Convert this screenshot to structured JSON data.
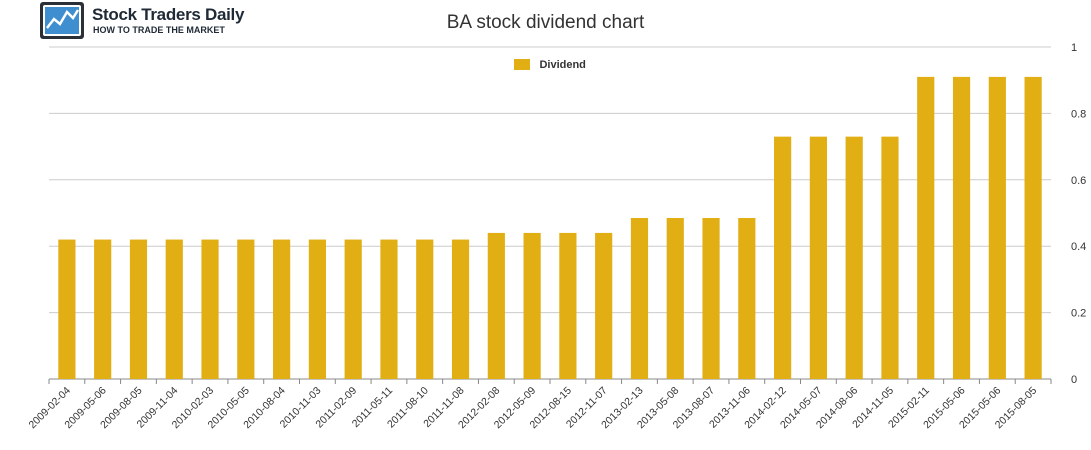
{
  "branding": {
    "logo_name": "Stock Traders Daily",
    "logo_tagline": "HOW TO TRADE THE MARKET"
  },
  "colors": {
    "bar": "#e1ae14",
    "grid": "#cccccc",
    "axis": "#888888",
    "text": "#333333"
  },
  "chart_data": {
    "type": "bar",
    "title": "BA stock dividend chart",
    "xlabel": "",
    "ylabel": "",
    "ylim": [
      0,
      1
    ],
    "yticks": [
      0,
      0.2,
      0.4,
      0.6,
      0.8,
      1
    ],
    "y_axis_side": "right",
    "grid": true,
    "legend_position": "top-center",
    "categories": [
      "2009-02-04",
      "2009-05-06",
      "2009-08-05",
      "2009-11-04",
      "2010-02-03",
      "2010-05-05",
      "2010-08-04",
      "2010-11-03",
      "2011-02-09",
      "2011-05-11",
      "2011-08-10",
      "2011-11-08",
      "2012-02-08",
      "2012-05-09",
      "2012-08-15",
      "2012-11-07",
      "2013-02-13",
      "2013-05-08",
      "2013-08-07",
      "2013-11-06",
      "2014-02-12",
      "2014-05-07",
      "2014-08-06",
      "2014-11-05",
      "2015-02-11",
      "2015-05-06",
      "2015-05-06",
      "2015-08-05"
    ],
    "series": [
      {
        "name": "Dividend",
        "values": [
          0.42,
          0.42,
          0.42,
          0.42,
          0.42,
          0.42,
          0.42,
          0.42,
          0.42,
          0.42,
          0.42,
          0.42,
          0.44,
          0.44,
          0.44,
          0.44,
          0.485,
          0.485,
          0.485,
          0.485,
          0.73,
          0.73,
          0.73,
          0.73,
          0.91,
          0.91,
          0.91,
          0.91
        ]
      }
    ]
  }
}
